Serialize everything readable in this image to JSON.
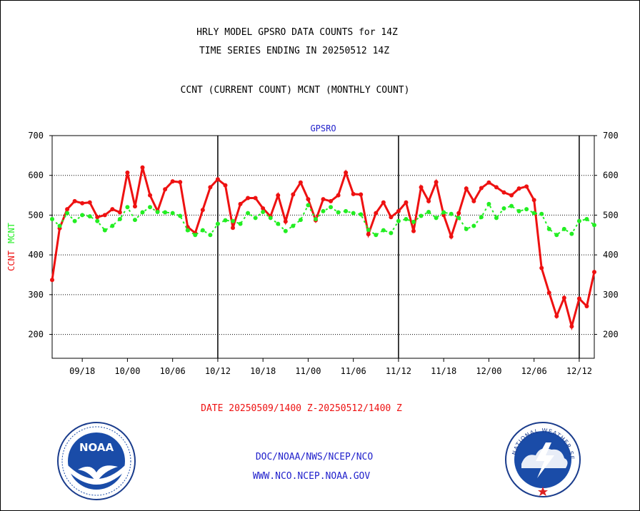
{
  "header": {
    "line1": "HRLY MODEL GPSRO DATA COUNTS for 14Z",
    "line2": "TIME SERIES ENDING IN 20250512 14Z",
    "line3": "CCNT (CURRENT COUNT) MCNT (MONTHLY COUNT)"
  },
  "footer": {
    "date_range": "DATE 20250509/1400 Z-20250512/1400 Z",
    "org": "DOC/NOAA/NWS/NCEP/NCO",
    "url": "WWW.NCO.NCEP.NOAA.GOV"
  },
  "logos": {
    "noaa_text": "NOAA",
    "nws_text": "NATIONAL WEATHER SERVICE"
  },
  "colors": {
    "ccnt": "#ee1111",
    "mcnt": "#22ee22",
    "title_blue": "#2222cc",
    "date_red": "#ee1111"
  },
  "chart_data": {
    "type": "line",
    "title": "GPSRO",
    "ylabel_left_parts": [
      "CCNT",
      "MCNT"
    ],
    "ylim": [
      140,
      700
    ],
    "yticks": [
      200,
      300,
      400,
      500,
      600,
      700
    ],
    "xtick_labels": [
      "09/18",
      "10/00",
      "10/06",
      "10/12",
      "10/18",
      "11/00",
      "11/06",
      "11/12",
      "11/18",
      "12/00",
      "12/06",
      "12/12"
    ],
    "xtick_index": [
      4,
      10,
      16,
      22,
      28,
      34,
      40,
      46,
      52,
      58,
      64,
      70
    ],
    "day_boundaries_index": [
      22,
      46,
      70
    ],
    "n_points": 73,
    "grid": true,
    "series": [
      {
        "name": "CCNT",
        "values": [
          337,
          467,
          515,
          535,
          530,
          532,
          495,
          500,
          515,
          507,
          607,
          522,
          620,
          550,
          510,
          565,
          585,
          583,
          470,
          455,
          513,
          570,
          590,
          575,
          468,
          528,
          543,
          543,
          517,
          497,
          550,
          484,
          552,
          582,
          540,
          487,
          540,
          535,
          550,
          607,
          553,
          552,
          452,
          505,
          532,
          495,
          510,
          532,
          460,
          570,
          535,
          583,
          500,
          446,
          505,
          567,
          535,
          568,
          582,
          570,
          557,
          550,
          567,
          572,
          538,
          367,
          305,
          246,
          292,
          220,
          290,
          271,
          357
        ]
      },
      {
        "name": "MCNT",
        "values": [
          490,
          473,
          505,
          485,
          500,
          497,
          485,
          462,
          473,
          490,
          520,
          488,
          507,
          520,
          508,
          507,
          505,
          498,
          462,
          450,
          462,
          450,
          478,
          487,
          485,
          478,
          505,
          493,
          508,
          493,
          478,
          460,
          473,
          488,
          525,
          490,
          510,
          520,
          507,
          510,
          505,
          502,
          463,
          450,
          462,
          455,
          485,
          490,
          483,
          498,
          508,
          493,
          507,
          503,
          493,
          465,
          473,
          495,
          528,
          493,
          517,
          523,
          510,
          515,
          505,
          503,
          465,
          450,
          465,
          453,
          485,
          490,
          475
        ]
      }
    ]
  }
}
